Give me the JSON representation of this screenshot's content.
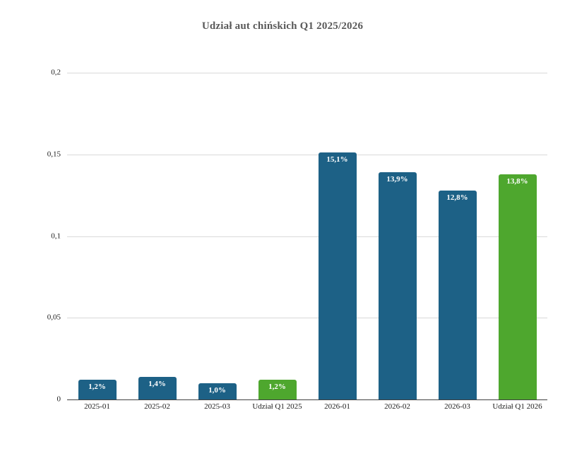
{
  "chart_data": {
    "type": "bar",
    "title": "Udział aut chińskich Q1 2025/2026",
    "categories": [
      "2025-01",
      "2025-02",
      "2025-03",
      "Udział Q1 2025",
      "2026-01",
      "2026-02",
      "2026-03",
      "Udział Q1 2026"
    ],
    "values": [
      0.012,
      0.014,
      0.01,
      0.012,
      0.151,
      0.139,
      0.128,
      0.138
    ],
    "value_labels": [
      "1,2%",
      "1,4%",
      "1,0%",
      "1,2%",
      "15,1%",
      "13,9%",
      "12,8%",
      "13,8%"
    ],
    "bar_color_keys": [
      "month",
      "month",
      "month",
      "quarter",
      "month",
      "month",
      "month",
      "quarter"
    ],
    "colors": {
      "month": "#1d6186",
      "quarter": "#4ea72e"
    },
    "xlabel": "",
    "ylabel": "",
    "ylim": [
      0,
      0.2
    ],
    "yticks": [
      {
        "value": 0,
        "label": "0"
      },
      {
        "value": 0.05,
        "label": "0,05"
      },
      {
        "value": 0.1,
        "label": "0,1"
      },
      {
        "value": 0.15,
        "label": "0,15"
      },
      {
        "value": 0.2,
        "label": "0,2"
      }
    ],
    "grid": true,
    "legend": "none",
    "styles": {
      "gridline_color": "#d9d9d9",
      "axis_line_color": "#404040",
      "title_color": "#595959",
      "tick_color": "#1a1a1a",
      "value_label_color": "#ffffff",
      "background": "#ffffff"
    }
  }
}
